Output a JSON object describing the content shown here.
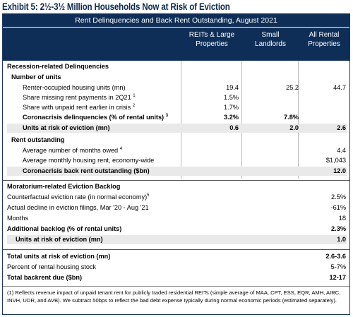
{
  "exhibit_title": "Exhibit 5: 2½-3½ Million Households Now at Risk of Eviction",
  "table_title": "Rent Delinquencies and Back Rent Outstanding, August 2021",
  "columns": {
    "c1": [
      "REITs & Large",
      "Properties"
    ],
    "c2": [
      "Small",
      "Landlords"
    ],
    "c3": [
      "All Rental",
      "Properties"
    ]
  },
  "rows": [
    {
      "label": "Recession-related Delinquencies",
      "c1": "",
      "c2": "",
      "c3": ""
    },
    {
      "label": "Number of units",
      "c1": "",
      "c2": "",
      "c3": ""
    },
    {
      "label": "Renter-occupied housing units (mn)",
      "c1": "19.4",
      "c2": "25.2",
      "c3": "44.7"
    },
    {
      "label": "Share missing rent payments in 2Q21",
      "sup": "1",
      "c1": "1.5%",
      "c2": "",
      "c3": ""
    },
    {
      "label": "Share with unpaid rent earlier in crisis",
      "sup": "2",
      "c1": "1.7%",
      "c2": "",
      "c3": ""
    },
    {
      "label": "Coronacrisis delinquencies (% of rental units)",
      "sup": "3",
      "c1": "3.2%",
      "c2": "7.8%",
      "c3": ""
    },
    {
      "label": "Units at risk of eviction (mn)",
      "c1": "0.6",
      "c2": "2.0",
      "c3": "2.6"
    },
    {
      "label": "Rent outstanding",
      "c1": "",
      "c2": "",
      "c3": ""
    },
    {
      "label": "Average number of months owed",
      "sup": "4",
      "c1": "",
      "c2": "",
      "c3": "4.4"
    },
    {
      "label": "Average monthly housing rent, economy-wide",
      "c1": "",
      "c2": "",
      "c3": "$1,043"
    },
    {
      "label": "Coronacrisis back rent outstanding ($bn)",
      "c1": "",
      "c2": "",
      "c3": "12.0"
    },
    {
      "label": "Moratorium-related Eviction Backlog",
      "c1": "",
      "c2": "",
      "c3": ""
    },
    {
      "label": "Counterfactual eviction rate (in normal economy)",
      "sup": "5",
      "c1": "",
      "c2": "",
      "c3": "2.5%"
    },
    {
      "label": "Actual decline in eviction filings, Mar '20 - Aug '21",
      "c1": "",
      "c2": "",
      "c3": "-61%"
    },
    {
      "label": "Months",
      "c1": "",
      "c2": "",
      "c3": "18"
    },
    {
      "label": "Additional backlog (% of rental units)",
      "c1": "",
      "c2": "",
      "c3": "2.3%"
    },
    {
      "label": "Units at risk of eviction (mn)",
      "c1": "",
      "c2": "",
      "c3": "1.0"
    },
    {
      "label": "Total units at risk of eviction (mn)",
      "c1": "",
      "c2": "",
      "c3": "2.6-3.6"
    },
    {
      "label": "Percent of rental housing stock",
      "c1": "",
      "c2": "",
      "c3": "5-7%"
    },
    {
      "label": "Total backrent due ($bn)",
      "c1": "",
      "c2": "",
      "c3": "12-17"
    }
  ],
  "footnote": "(1) Reflects revenue impact of unpaid tenant rent for publicly traded residential REITs (simple average of MAA, CPT, ESS, EQR, AMH, AIRC, INVH, UDR, and AVB). We subtract 50bps to reflect the bad debt expense typically during normal economic periods (estimated separately).",
  "colors": {
    "header_band": "#0f2e57",
    "highlight_row": "#e9e9e9",
    "title_text": "#0c2a50"
  }
}
